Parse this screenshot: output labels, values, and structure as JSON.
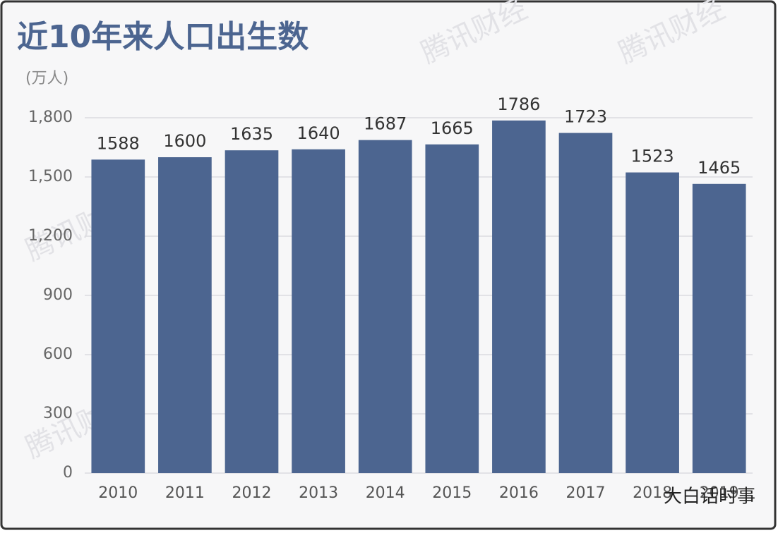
{
  "chart_data": {
    "type": "bar",
    "title": "近10年来人口出生数",
    "y_unit": "(万人)",
    "categories": [
      "2010",
      "2011",
      "2012",
      "2013",
      "2014",
      "2015",
      "2016",
      "2017",
      "2018",
      "2019"
    ],
    "values": [
      1588,
      1600,
      1635,
      1640,
      1687,
      1665,
      1786,
      1723,
      1523,
      1465
    ],
    "value_labels_shown": true,
    "color": "#4c6590",
    "ylim": [
      0,
      1800
    ],
    "yticks": [
      0,
      300,
      600,
      900,
      {
        "value": 1200,
        "label": "1,200"
      },
      {
        "value": 1500,
        "label": "1,500"
      },
      {
        "value": 1800,
        "label": "1,800"
      }
    ],
    "grid": true,
    "watermark": "腾讯财经",
    "source_mark": "大白话时事"
  }
}
